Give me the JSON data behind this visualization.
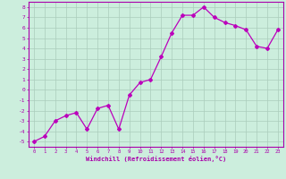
{
  "x": [
    0,
    1,
    2,
    3,
    4,
    5,
    6,
    7,
    8,
    9,
    10,
    11,
    12,
    13,
    14,
    15,
    16,
    17,
    18,
    19,
    20,
    21,
    22,
    23
  ],
  "y": [
    -5.0,
    -4.5,
    -3.0,
    -2.5,
    -2.2,
    -3.8,
    -1.8,
    -1.5,
    -3.8,
    -0.5,
    0.7,
    1.0,
    3.2,
    5.5,
    7.2,
    7.2,
    8.0,
    7.0,
    6.5,
    6.2,
    5.8,
    4.2,
    4.0,
    5.8
  ],
  "line_color": "#bb00bb",
  "marker": "D",
  "marker_size": 2,
  "bg_color": "#cceedd",
  "grid_color": "#aaccbb",
  "xlabel": "Windchill (Refroidissement éolien,°C)",
  "xlim": [
    -0.5,
    23.5
  ],
  "ylim": [
    -5.5,
    8.5
  ],
  "yticks": [
    -5,
    -4,
    -3,
    -2,
    -1,
    0,
    1,
    2,
    3,
    4,
    5,
    6,
    7,
    8
  ],
  "xticks": [
    0,
    1,
    2,
    3,
    4,
    5,
    6,
    7,
    8,
    9,
    10,
    11,
    12,
    13,
    14,
    15,
    16,
    17,
    18,
    19,
    20,
    21,
    22,
    23
  ],
  "tick_color": "#aa00aa",
  "spine_color": "#aa00aa",
  "label_color": "#aa00aa"
}
